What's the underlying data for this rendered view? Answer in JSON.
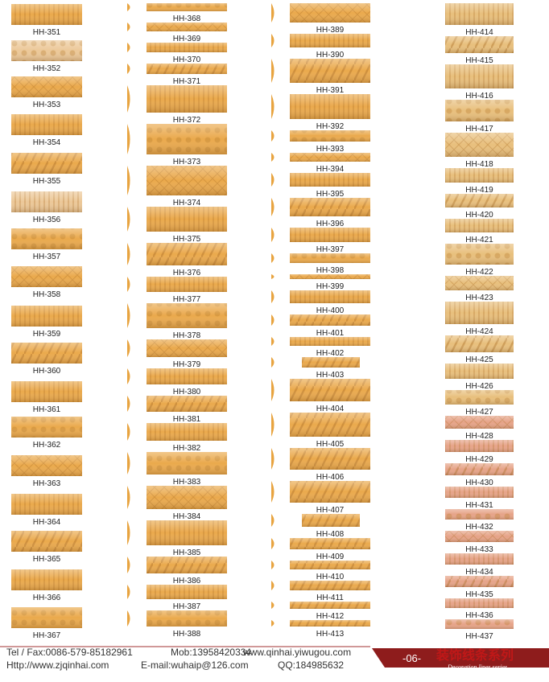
{
  "columns": [
    [
      "HH-351",
      "HH-352",
      "HH-353",
      "HH-354",
      "HH-355",
      "HH-356",
      "HH-357",
      "HH-358",
      "HH-359",
      "HH-360",
      "HH-361",
      "HH-362",
      "HH-363",
      "HH-364",
      "HH-365",
      "HH-366",
      "HH-367"
    ],
    [
      "HH-368",
      "HH-369",
      "HH-370",
      "HH-371",
      "HH-372",
      "HH-373",
      "HH-374",
      "HH-375",
      "HH-376",
      "HH-377",
      "HH-378",
      "HH-379",
      "HH-380",
      "HH-381",
      "HH-382",
      "HH-383",
      "HH-384",
      "HH-385",
      "HH-386",
      "HH-387",
      "HH-388"
    ],
    [
      "HH-389",
      "HH-390",
      "HH-391",
      "HH-392",
      "HH-393",
      "HH-394",
      "HH-395",
      "HH-396",
      "HH-397",
      "HH-398",
      "HH-399",
      "HH-400",
      "HH-401",
      "HH-402",
      "HH-403",
      "HH-404",
      "HH-405",
      "HH-406",
      "HH-407",
      "HH-408",
      "HH-409",
      "HH-410",
      "HH-411",
      "HH-412",
      "HH-413"
    ],
    [
      "HH-414",
      "HH-415",
      "HH-416",
      "HH-417",
      "HH-418",
      "HH-419",
      "HH-420",
      "HH-421",
      "HH-422",
      "HH-423",
      "HH-424",
      "HH-425",
      "HH-426",
      "HH-427",
      "HH-428",
      "HH-429",
      "HH-430",
      "HH-431",
      "HH-432",
      "HH-433",
      "HH-434",
      "HH-435",
      "HH-436",
      "HH-437"
    ]
  ],
  "footer": {
    "tel": "Tel / Fax:0086-579-85182961",
    "mob": "Mob:13958420334",
    "web": "www.qinhai.yiwugou.com",
    "http": "Http://www.zjqinhai.com",
    "email": "E-mail:wuhaip@126.com",
    "qq": "QQ:184985632",
    "page": "-06-",
    "brand": "装饰线条系列",
    "brand_en": "Decoration lines series"
  }
}
